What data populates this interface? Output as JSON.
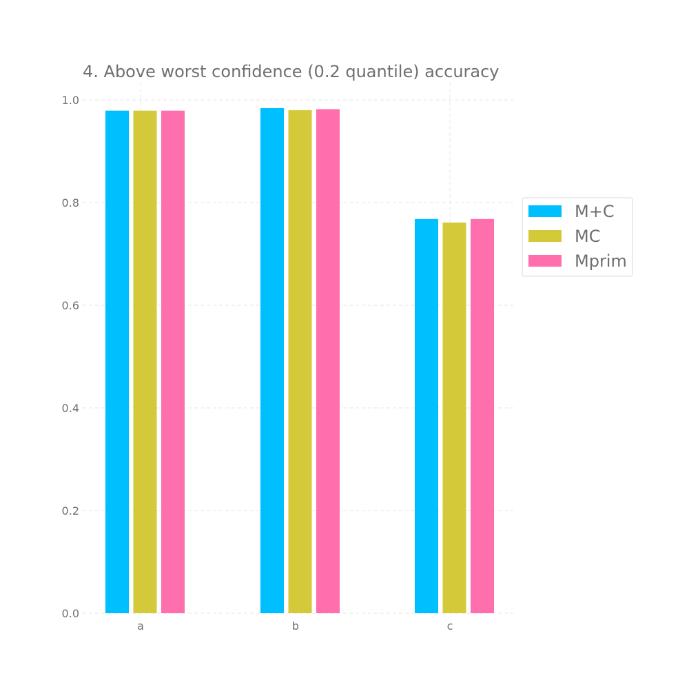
{
  "chart_data": {
    "type": "bar",
    "title": "4. Above worst confidence (0.2 quantile) accuracy",
    "xlabel": "",
    "ylabel": "",
    "categories": [
      "a",
      "b",
      "c"
    ],
    "series": [
      {
        "name": "M+C",
        "color": "#00bfff",
        "values": [
          0.979,
          0.984,
          0.768
        ]
      },
      {
        "name": "MC",
        "color": "#d4c938",
        "values": [
          0.979,
          0.98,
          0.761
        ]
      },
      {
        "name": "Mprim",
        "color": "#ff6ead",
        "values": [
          0.979,
          0.982,
          0.768
        ]
      }
    ],
    "ylim": [
      0,
      1.0
    ],
    "yticks": [
      "0.0",
      "0.2",
      "0.4",
      "0.6",
      "0.8",
      "1.0"
    ],
    "grid": true,
    "legend_position": "right"
  }
}
